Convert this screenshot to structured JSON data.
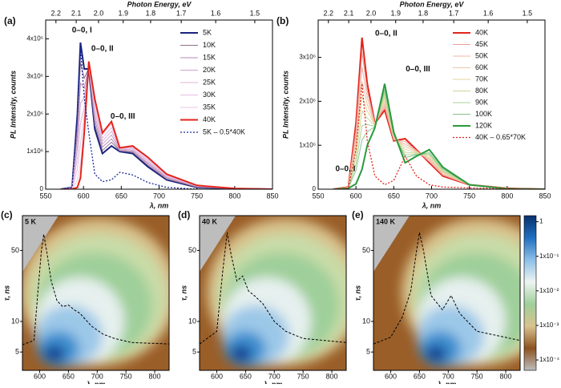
{
  "chart_data": [
    {
      "type": "line",
      "panel_label": "(a)",
      "x2label": "Photon Energy, eV",
      "xlabel": "λ, nm",
      "ylabel": "PL Intensity, counts",
      "xlim": [
        550,
        850
      ],
      "xticks": [
        550,
        600,
        650,
        700,
        750,
        800,
        850
      ],
      "x2ticks": [
        2.2,
        2.1,
        {
          "value": 2,
          "label": "2.0"
        },
        1.9,
        1.8,
        1.7,
        1.6,
        1.5
      ],
      "ylim": [
        0,
        4500000.0
      ],
      "yticks": [
        0,
        {
          "value": 1000000.0,
          "label": "1x10⁶"
        },
        {
          "value": 2000000.0,
          "label": "2x10⁶"
        },
        {
          "value": 3000000.0,
          "label": "3x10⁶"
        },
        {
          "value": 4000000.0,
          "label": "4x10⁶"
        }
      ],
      "legend": "upper right",
      "annotations": [
        "0–0, I",
        "0–0, II",
        "0–0, III"
      ],
      "x": [
        570,
        585,
        592,
        596,
        601,
        607,
        615,
        625,
        637,
        648,
        665,
        685,
        710,
        750,
        800,
        850
      ],
      "series": [
        {
          "name": "5K",
          "color": "#1a237e",
          "width": 2,
          "values": [
            0,
            50000.0,
            2000000.0,
            3900000.0,
            3200000.0,
            3200000.0,
            1600000.0,
            950000.0,
            1150000.0,
            1000000.0,
            950000.0,
            600000.0,
            250000.0,
            50000.0,
            10000.0,
            0
          ]
        },
        {
          "name": "10K",
          "color": "#8e6f8e",
          "width": 1,
          "values": [
            0,
            40000.0,
            1710000.0,
            3360000.0,
            2950000.0,
            3230000.0,
            1720000.0,
            1030000.0,
            1250000.0,
            1020000.0,
            980000.0,
            640000.0,
            270000.0,
            60000.0,
            10000.0,
            0
          ]
        },
        {
          "name": "15K",
          "color": "#b58ab5",
          "width": 1,
          "values": [
            0,
            40000.0,
            1420000.0,
            2820000.0,
            2690000.0,
            3260000.0,
            1840000.0,
            1120000.0,
            1340000.0,
            1030000.0,
            1010000.0,
            680000.0,
            300000.0,
            70000.0,
            10000.0,
            0
          ]
        },
        {
          "name": "20K",
          "color": "#cfa4d0",
          "width": 1,
          "values": [
            0,
            30000.0,
            1120000.0,
            2280000.0,
            2440000.0,
            3290000.0,
            1960000.0,
            1200000.0,
            1440000.0,
            1050000.0,
            1040000.0,
            710000.0,
            320000.0,
            70000.0,
            20000.0,
            0
          ]
        },
        {
          "name": "25K",
          "color": "#dcb4dc",
          "width": 1,
          "values": [
            0,
            20000.0,
            830000.0,
            1740000.0,
            2180000.0,
            3320000.0,
            2080000.0,
            1280000.0,
            1540000.0,
            1060000.0,
            1070000.0,
            750000.0,
            340000.0,
            80000.0,
            20000.0,
            0
          ]
        },
        {
          "name": "30K",
          "color": "#e4bfe2",
          "width": 1,
          "values": [
            0,
            10000.0,
            540000.0,
            1200000.0,
            1930000.0,
            3350000.0,
            2200000.0,
            1360000.0,
            1640000.0,
            1080000.0,
            1100000.0,
            790000.0,
            360000.0,
            90000.0,
            20000.0,
            0
          ]
        },
        {
          "name": "35K",
          "color": "#eac8e8",
          "width": 1,
          "values": [
            0,
            10000.0,
            240000.0,
            660000.0,
            1670000.0,
            3380000.0,
            2320000.0,
            1450000.0,
            1730000.0,
            1090000.0,
            1130000.0,
            820000.0,
            380000.0,
            100000.0,
            20000.0,
            0
          ]
        },
        {
          "name": "40K",
          "color": "#e3241b",
          "width": 2,
          "values": [
            0,
            0,
            50000.0,
            300000.0,
            1500000.0,
            3400000.0,
            2400000.0,
            1500000.0,
            1800000.0,
            1100000.0,
            1150000.0,
            850000.0,
            400000.0,
            100000.0,
            20000.0,
            0
          ]
        },
        {
          "name": "5K – 0.5*40K",
          "color": "#1a2a9a",
          "width": 1.3,
          "style": "dotted",
          "values": [
            0,
            50000.0,
            1980000.0,
            3750000.0,
            2450000.0,
            1500000.0,
            400000.0,
            200000.0,
            250000.0,
            450000.0,
            380000.0,
            180000.0,
            50000.0,
            0,
            0,
            0
          ]
        }
      ]
    },
    {
      "type": "line",
      "panel_label": "(b)",
      "x2label": "Photon Energy, eV",
      "xlabel": "λ, nm",
      "ylabel": "PL Intensity, counts",
      "xlim": [
        550,
        850
      ],
      "xticks": [
        550,
        600,
        650,
        700,
        750,
        800,
        850
      ],
      "x2ticks": [
        2.2,
        2.1,
        {
          "value": 2,
          "label": "2.0"
        },
        1.9,
        1.8,
        1.7,
        1.6,
        1.5
      ],
      "ylim": [
        0,
        3850000.0
      ],
      "yticks": [
        0,
        {
          "value": 1000000.0,
          "label": "1x10⁶"
        },
        {
          "value": 2000000.0,
          "label": "2x10⁶"
        },
        {
          "value": 3000000.0,
          "label": "3x10⁶"
        }
      ],
      "legend": "upper right",
      "annotations": [
        "0–0, I",
        "0–0, II",
        "0–0, III"
      ],
      "x": [
        570,
        590,
        600,
        608,
        615,
        625,
        638,
        650,
        665,
        680,
        697,
        715,
        750,
        800,
        850
      ],
      "series": [
        {
          "name": "40K",
          "color": "#e3241b",
          "width": 2,
          "values": [
            0,
            50000.0,
            1500000.0,
            3450000.0,
            2400000.0,
            1500000.0,
            1800000.0,
            1100000.0,
            1150000.0,
            900000.0,
            600000.0,
            300000.0,
            100000.0,
            20000.0,
            0
          ]
        },
        {
          "name": "45K",
          "color": "#ec9f9a",
          "width": 1,
          "values": [
            0,
            50000.0,
            1350000.0,
            3120000.0,
            2240000.0,
            1490000.0,
            1870000.0,
            1120000.0,
            1090000.0,
            880000.0,
            630000.0,
            320000.0,
            100000.0,
            20000.0,
            0
          ]
        },
        {
          "name": "50K",
          "color": "#efb4a4",
          "width": 1,
          "values": [
            0,
            40000.0,
            1190000.0,
            2780000.0,
            2090000.0,
            1480000.0,
            1930000.0,
            1140000.0,
            1030000.0,
            870000.0,
            670000.0,
            340000.0,
            100000.0,
            20000.0,
            0
          ]
        },
        {
          "name": "60K",
          "color": "#ecc7a2",
          "width": 1,
          "values": [
            0,
            40000.0,
            1040000.0,
            2450000.0,
            1930000.0,
            1470000.0,
            2000000.0,
            1170000.0,
            970000.0,
            850000.0,
            700000.0,
            370000.0,
            100000.0,
            20000.0,
            0
          ]
        },
        {
          "name": "70K",
          "color": "#e2d59e",
          "width": 1,
          "values": [
            0,
            40000.0,
            890000.0,
            2120000.0,
            1780000.0,
            1460000.0,
            2070000.0,
            1190000.0,
            910000.0,
            830000.0,
            730000.0,
            390000.0,
            100000.0,
            20000.0,
            0
          ]
        },
        {
          "name": "80K",
          "color": "#cbd99a",
          "width": 1,
          "values": [
            0,
            30000.0,
            730000.0,
            1780000.0,
            1620000.0,
            1440000.0,
            2130000.0,
            1210000.0,
            840000.0,
            820000.0,
            770000.0,
            410000.0,
            100000.0,
            10000.0,
            0
          ]
        },
        {
          "name": "90K",
          "color": "#abd29a",
          "width": 1,
          "values": [
            0,
            30000.0,
            580000.0,
            1450000.0,
            1470000.0,
            1430000.0,
            2200000.0,
            1230000.0,
            780000.0,
            800000.0,
            800000.0,
            430000.0,
            100000.0,
            10000.0,
            0
          ]
        },
        {
          "name": "100K",
          "color": "#86c48c",
          "width": 1,
          "values": [
            0,
            30000.0,
            430000.0,
            1120000.0,
            1310000.0,
            1420000.0,
            2270000.0,
            1260000.0,
            720000.0,
            780000.0,
            830000.0,
            460000.0,
            100000.0,
            10000.0,
            0
          ]
        },
        {
          "name": "120K",
          "color": "#2b9a3e",
          "width": 2,
          "values": [
            0,
            20000.0,
            120000.0,
            450000.0,
            1000000.0,
            1400000.0,
            2400000.0,
            1300000.0,
            600000.0,
            750000.0,
            900000.0,
            500000.0,
            100000.0,
            10000.0,
            0
          ]
        },
        {
          "name": "40K – 0.65*70K",
          "color": "#e3241b",
          "width": 1.3,
          "style": "dotted",
          "values": [
            0,
            20000.0,
            900000.0,
            2400000.0,
            1100000.0,
            300000.0,
            100000.0,
            200000.0,
            750000.0,
            300000.0,
            100000.0,
            50000.0,
            30000.0,
            10000.0,
            0
          ]
        }
      ]
    },
    {
      "type": "heatmap",
      "panel_label": "(c)",
      "title": "5 K",
      "xlabel": "λ, nm",
      "ylabel": "τ, ns",
      "log_y": true,
      "xlim": [
        570,
        825
      ],
      "xticks": [
        600,
        650,
        700,
        750,
        800
      ],
      "ylim": [
        3.3,
        110
      ],
      "yticks": [
        5,
        10,
        50
      ],
      "x": [
        570,
        590,
        597,
        603,
        607,
        612,
        620,
        630,
        640,
        650,
        660,
        670,
        690,
        710,
        730,
        760,
        825
      ],
      "values": [
        5.9,
        6.5,
        20,
        50,
        72,
        50,
        25,
        16,
        14,
        14.5,
        13,
        12,
        9,
        7.5,
        6.8,
        6.2,
        6
      ],
      "color": "#000000"
    },
    {
      "type": "heatmap",
      "panel_label": "(d)",
      "title": "40 K",
      "xlabel": "λ, nm",
      "ylabel": "τ, ns",
      "log_y": true,
      "xlim": [
        570,
        825
      ],
      "xticks": [
        600,
        650,
        700,
        750,
        800
      ],
      "ylim": [
        3.3,
        110
      ],
      "yticks": [
        5,
        10,
        50
      ],
      "x": [
        570,
        600,
        610,
        618,
        625,
        635,
        645,
        655,
        665,
        680,
        700,
        720,
        750,
        825
      ],
      "values": [
        6,
        8,
        30,
        75,
        45,
        25,
        28,
        20,
        18,
        15,
        10,
        8,
        6.8,
        6.2
      ],
      "color": "#000000"
    },
    {
      "type": "heatmap",
      "panel_label": "(e)",
      "title": "140 K",
      "xlabel": "λ, nm",
      "ylabel": "τ, ns",
      "log_y": true,
      "xlim": [
        570,
        825
      ],
      "xticks": [
        600,
        650,
        700,
        750,
        800
      ],
      "ylim": [
        3.3,
        110
      ],
      "yticks": [
        5,
        10,
        50
      ],
      "x": [
        570,
        600,
        620,
        635,
        645,
        650,
        657,
        670,
        690,
        705,
        720,
        750,
        825
      ],
      "values": [
        6,
        7,
        11,
        20,
        50,
        75,
        50,
        18,
        13,
        18,
        12,
        8,
        6.5
      ],
      "color": "#000000"
    }
  ],
  "colorbar": {
    "log": true,
    "lim": [
      5e-05,
      1.5
    ],
    "ticks": [
      1,
      {
        "value": 0.1,
        "label": "1x10⁻¹"
      },
      {
        "value": 0.01,
        "label": "1x10⁻²"
      },
      {
        "value": 0.001,
        "label": "1x10⁻³"
      },
      {
        "value": 0.0001,
        "label": "1x10⁻⁴"
      }
    ],
    "colors": [
      "#08306b",
      "#1f6fc0",
      "#8cc0e8",
      "#eef4f2",
      "#9fcf9a",
      "#d9c38f",
      "#8c5220",
      "#bdbdbd"
    ]
  }
}
